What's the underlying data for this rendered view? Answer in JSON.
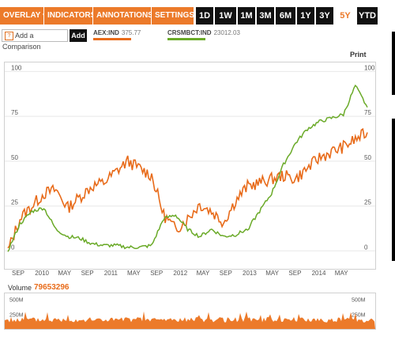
{
  "toolbar": {
    "menus": [
      {
        "label": "OVERLAY"
      },
      {
        "label": "INDICATORS"
      },
      {
        "label": "ANNOTATIONS"
      },
      {
        "label": "SETTINGS"
      }
    ],
    "chevron": "▼",
    "ranges": [
      {
        "label": "1D"
      },
      {
        "label": "1W"
      },
      {
        "label": "1M"
      },
      {
        "label": "3M"
      },
      {
        "label": "6M"
      },
      {
        "label": "1Y"
      },
      {
        "label": "3Y"
      },
      {
        "label": "5Y",
        "active": true
      },
      {
        "label": "YTD"
      }
    ]
  },
  "comparison": {
    "help_icon": "?",
    "placeholder": "Add a Comparison",
    "add_label": "Add"
  },
  "legend": [
    {
      "label": "AEX:IND",
      "value": "375.77",
      "color": "#e86b1a"
    },
    {
      "label": "CRSMBCT:IND",
      "value": "23012.03",
      "color": "#6aaa28"
    }
  ],
  "print_label": "Print",
  "price_panel": {
    "y_ticks": [
      "100",
      "75",
      "50",
      "25",
      "0"
    ]
  },
  "x_ticks": [
    "SEP",
    "2010",
    "MAY",
    "SEP",
    "2011",
    "MAY",
    "SEP",
    "2012",
    "MAY",
    "SEP",
    "2013",
    "MAY",
    "SEP",
    "2014",
    "MAY"
  ],
  "volume": {
    "label": "Volume",
    "value": "79653296",
    "y_ticks": [
      "500M",
      "250M"
    ]
  },
  "colors": {
    "accent": "#ec7a2a",
    "aex": "#e86b1a",
    "crsmbct": "#6aaa28"
  },
  "chart_data": {
    "type": "line",
    "x": [
      "2009-07",
      "2009-09",
      "2009-11",
      "2010-01",
      "2010-03",
      "2010-05",
      "2010-07",
      "2010-09",
      "2010-11",
      "2011-01",
      "2011-03",
      "2011-05",
      "2011-07",
      "2011-09",
      "2011-11",
      "2012-01",
      "2012-03",
      "2012-05",
      "2012-07",
      "2012-09",
      "2012-11",
      "2013-01",
      "2013-03",
      "2013-05",
      "2013-07",
      "2013-09",
      "2013-11",
      "2014-01",
      "2014-03",
      "2014-05",
      "2014-07"
    ],
    "y_ticks": [
      0,
      25,
      50,
      75,
      100
    ],
    "ylim": [
      -10,
      105
    ],
    "series": [
      {
        "name": "AEX:IND",
        "values": [
          0,
          18,
          25,
          32,
          34,
          24,
          30,
          36,
          38,
          44,
          50,
          46,
          42,
          20,
          12,
          18,
          26,
          22,
          16,
          28,
          36,
          38,
          40,
          42,
          40,
          46,
          52,
          55,
          58,
          62,
          66
        ]
      },
      {
        "name": "CRSMBCT:IND",
        "values": [
          0,
          15,
          22,
          24,
          12,
          8,
          7,
          4,
          3,
          3,
          2,
          2,
          3,
          18,
          20,
          12,
          8,
          12,
          8,
          9,
          12,
          22,
          32,
          48,
          60,
          68,
          72,
          74,
          76,
          92,
          80
        ]
      }
    ],
    "volume_series": {
      "name": "Volume",
      "ylim": [
        0,
        600
      ]
    }
  }
}
